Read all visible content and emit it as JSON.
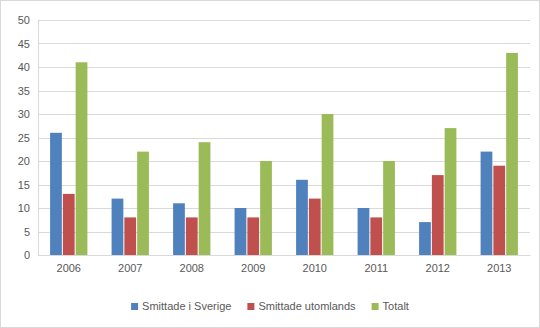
{
  "chart_data": {
    "type": "bar",
    "categories": [
      "2006",
      "2007",
      "2008",
      "2009",
      "2010",
      "2011",
      "2012",
      "2013"
    ],
    "series": [
      {
        "name": "Smittade i Sverige",
        "color": "#4f81bd",
        "values": [
          26,
          12,
          11,
          10,
          16,
          10,
          7,
          22
        ]
      },
      {
        "name": "Smittade utomlands",
        "color": "#c0504d",
        "values": [
          13,
          8,
          8,
          8,
          12,
          8,
          17,
          19
        ]
      },
      {
        "name": "Totalt",
        "color": "#9bbb59",
        "values": [
          41,
          22,
          24,
          20,
          30,
          20,
          27,
          43
        ]
      }
    ],
    "ylim": [
      0,
      50
    ],
    "yticks": [
      0,
      5,
      10,
      15,
      20,
      25,
      30,
      35,
      40,
      45,
      50
    ],
    "grid": true,
    "legend": "bottom"
  }
}
